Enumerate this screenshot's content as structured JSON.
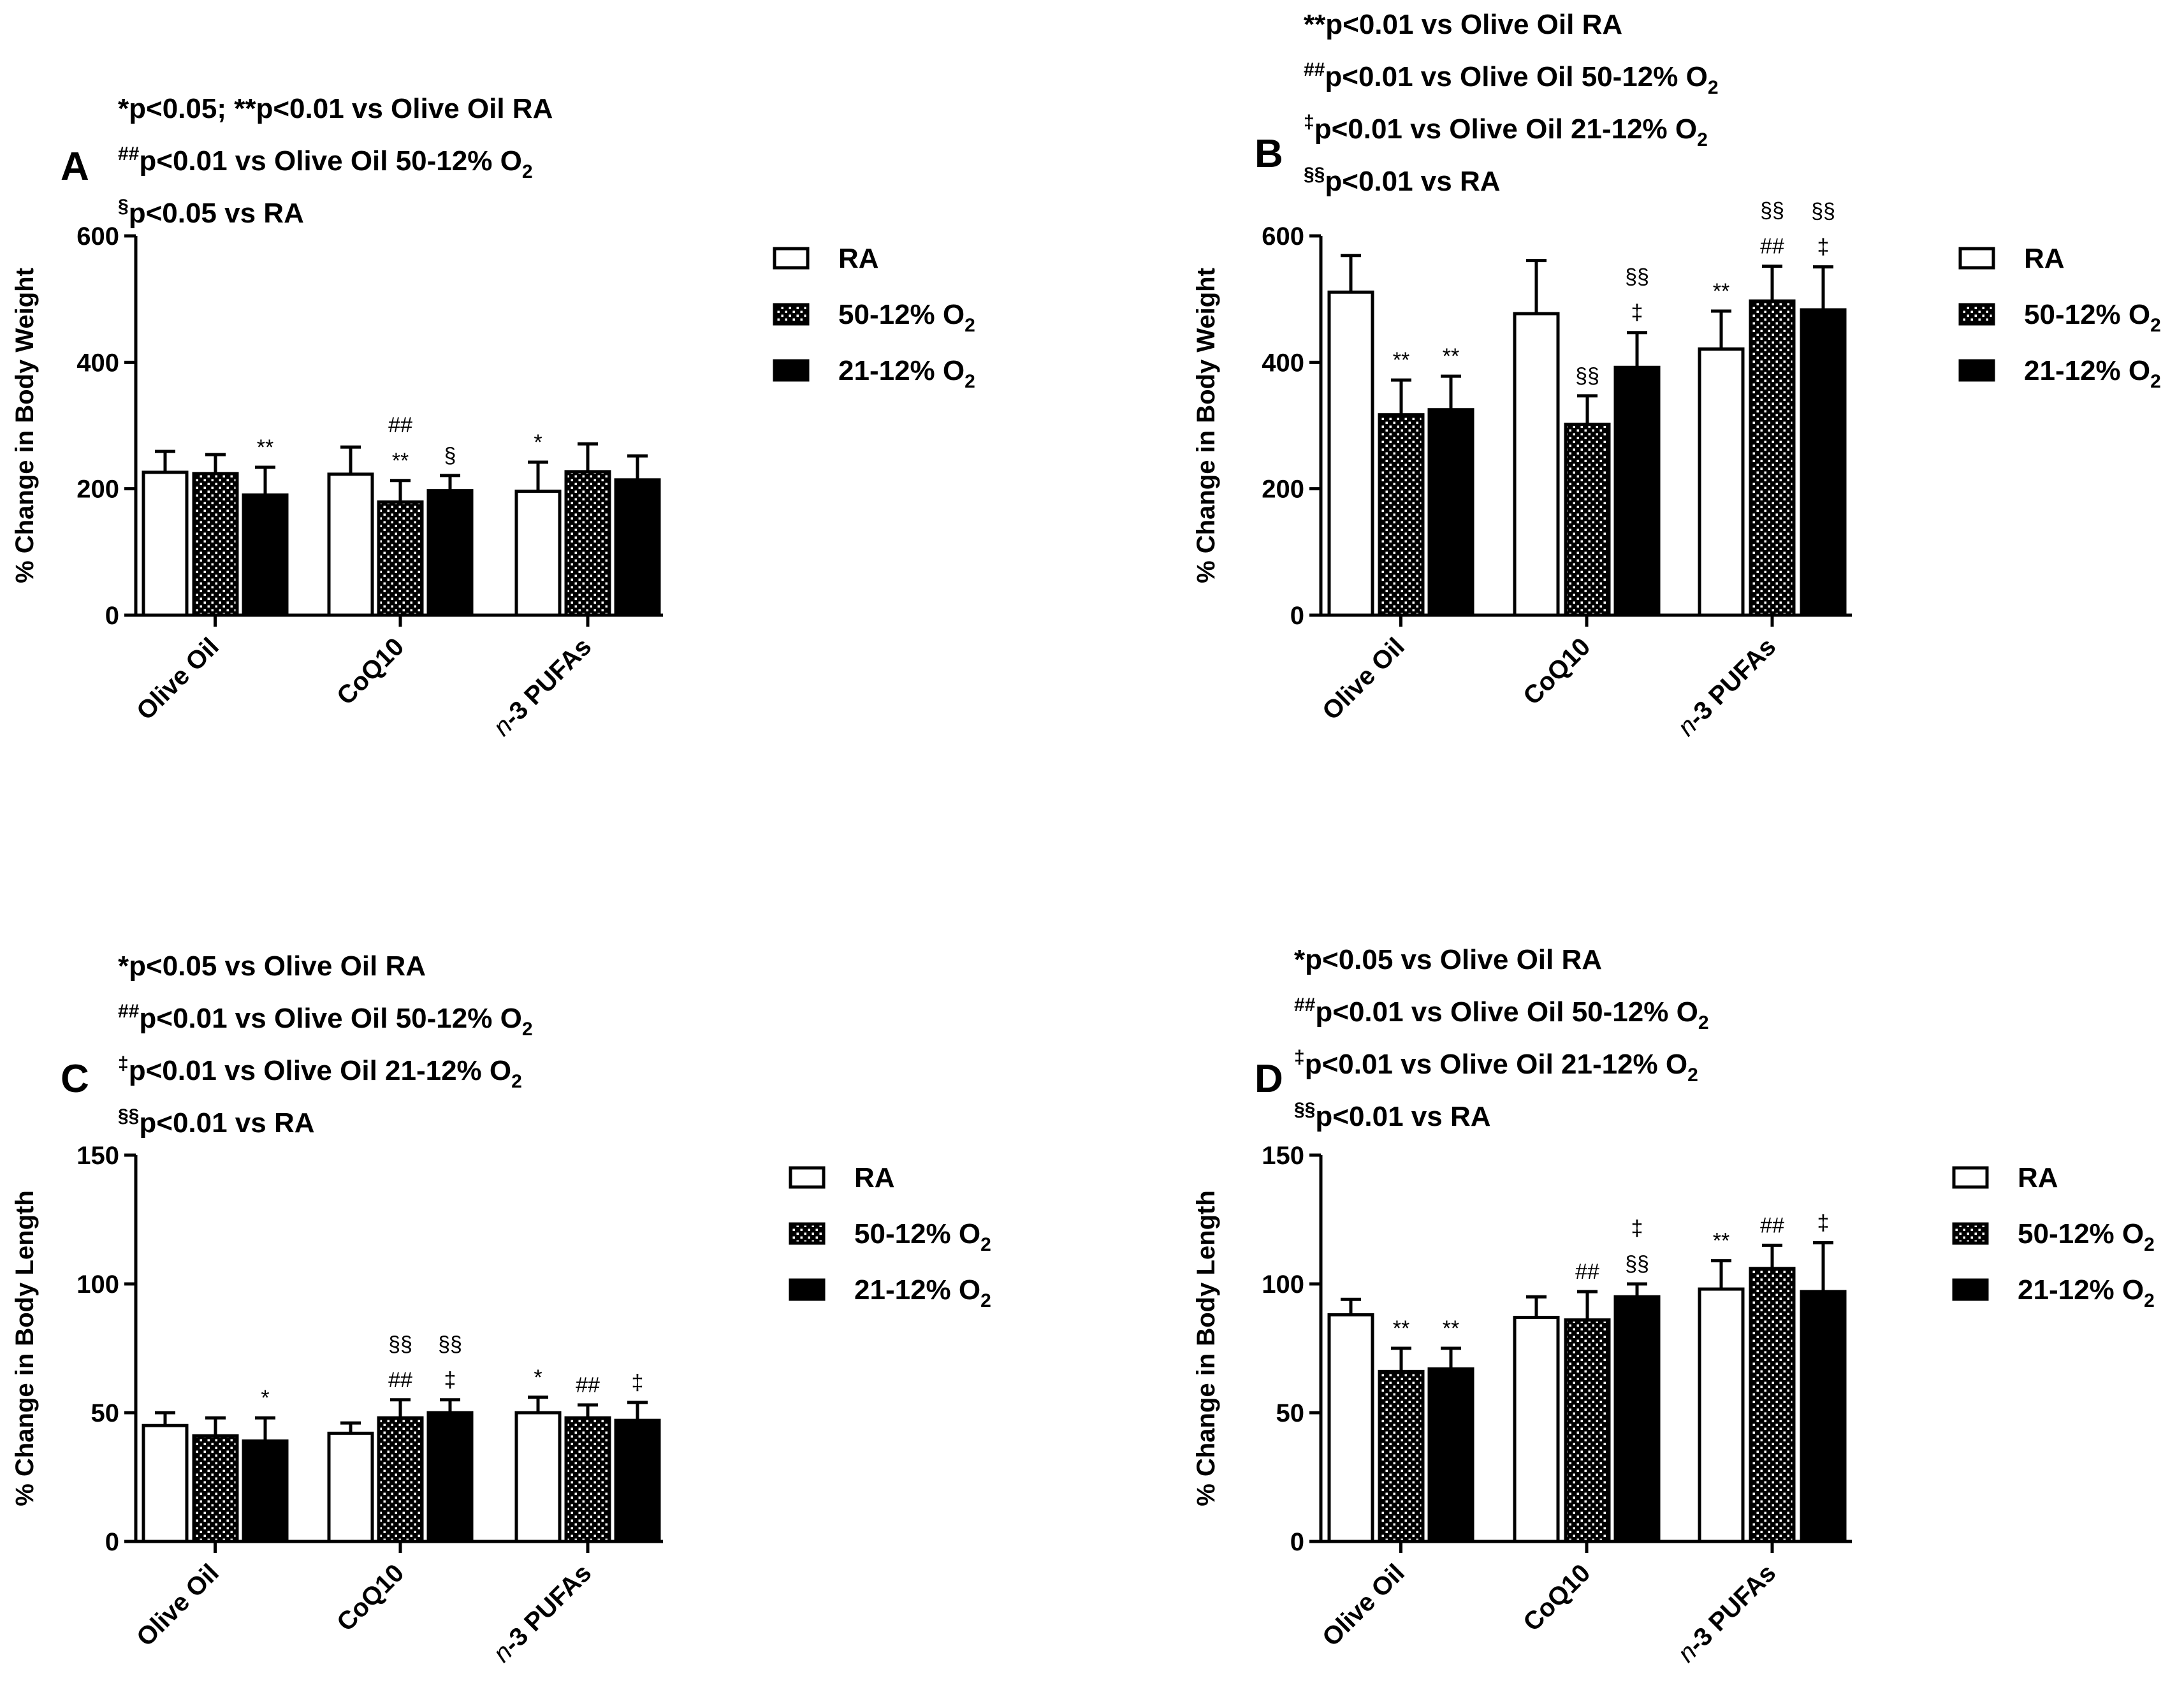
{
  "figure": {
    "series_legend": [
      {
        "key": "RA",
        "label": "RA",
        "sub": ""
      },
      {
        "key": "5012",
        "label": "50-12% O",
        "sub": "2"
      },
      {
        "key": "2112",
        "label": "21-12% O",
        "sub": "2"
      }
    ],
    "colors": {
      "ra_fill": "#ffffff",
      "o5012_pattern": "#000000",
      "o2112_fill": "#000000",
      "stroke": "#000000"
    }
  },
  "chart_data": [
    {
      "panel": "A",
      "type": "bar",
      "ylabel": "% Change in Body Weight",
      "ylim": [
        0,
        600
      ],
      "yticks": [
        0,
        200,
        400,
        600
      ],
      "categories": [
        "Olive Oil",
        "CoQ10",
        "n-3 PUFAs"
      ],
      "series": [
        {
          "name": "RA",
          "values": [
            226,
            223,
            196
          ],
          "errors": [
            33,
            43,
            46
          ],
          "sig": [
            "",
            "",
            "*"
          ]
        },
        {
          "name": "50-12% O2",
          "values": [
            224,
            179,
            227
          ],
          "errors": [
            30,
            34,
            44
          ],
          "sig": [
            "",
            "##\n**",
            ""
          ]
        },
        {
          "name": "21-12% O2",
          "values": [
            190,
            197,
            214
          ],
          "errors": [
            44,
            24,
            38
          ],
          "sig": [
            "**",
            "§",
            ""
          ]
        }
      ],
      "notes": [
        {
          "sup": "",
          "text": "*p<0.05; **p<0.01 vs Olive Oil RA",
          "sub": ""
        },
        {
          "sup": "##",
          "text": "p<0.01 vs Olive Oil 50-12% O",
          "sub": "2"
        },
        {
          "sup": "§",
          "text": "p<0.05 vs RA",
          "sub": ""
        }
      ]
    },
    {
      "panel": "B",
      "type": "bar",
      "ylabel": "% Change in Body Weight",
      "ylim": [
        0,
        600
      ],
      "yticks": [
        0,
        200,
        400,
        600
      ],
      "categories": [
        "Olive Oil",
        "CoQ10",
        "n-3 PUFAs"
      ],
      "series": [
        {
          "name": "RA",
          "values": [
            511,
            477,
            421
          ],
          "errors": [
            58,
            84,
            60
          ],
          "sig": [
            "",
            "",
            "**"
          ]
        },
        {
          "name": "50-12% O2",
          "values": [
            317,
            302,
            497
          ],
          "errors": [
            55,
            45,
            55
          ],
          "sig": [
            "**",
            "§§",
            "§§\n##"
          ]
        },
        {
          "name": "21-12% O2",
          "values": [
            325,
            392,
            483
          ],
          "errors": [
            53,
            55,
            68
          ],
          "sig": [
            "**",
            "§§\n‡",
            "§§\n‡"
          ]
        }
      ],
      "notes": [
        {
          "sup": "",
          "text": "**p<0.01 vs Olive Oil RA",
          "sub": ""
        },
        {
          "sup": "##",
          "text": "p<0.01 vs Olive Oil 50-12% O",
          "sub": "2"
        },
        {
          "sup": "‡",
          "text": "p<0.01 vs Olive Oil 21-12% O",
          "sub": "2"
        },
        {
          "sup": "§§",
          "text": "p<0.01 vs RA",
          "sub": ""
        }
      ]
    },
    {
      "panel": "C",
      "type": "bar",
      "ylabel": "% Change in Body Length",
      "ylim": [
        0,
        150
      ],
      "yticks": [
        0,
        50,
        100,
        150
      ],
      "categories": [
        "Olive Oil",
        "CoQ10",
        "n-3 PUFAs"
      ],
      "series": [
        {
          "name": "RA",
          "values": [
            45,
            42,
            50
          ],
          "errors": [
            5,
            4,
            6
          ],
          "sig": [
            "",
            "",
            "*"
          ]
        },
        {
          "name": "50-12% O2",
          "values": [
            41,
            48,
            48
          ],
          "errors": [
            7,
            7,
            5
          ],
          "sig": [
            "",
            "§§\n##",
            "##"
          ]
        },
        {
          "name": "21-12% O2",
          "values": [
            39,
            50,
            47
          ],
          "errors": [
            9,
            5,
            7
          ],
          "sig": [
            "*",
            "§§\n‡",
            "‡"
          ]
        }
      ],
      "notes": [
        {
          "sup": "",
          "text": "*p<0.05 vs Olive Oil RA",
          "sub": ""
        },
        {
          "sup": "##",
          "text": "p<0.01 vs Olive Oil 50-12% O",
          "sub": "2"
        },
        {
          "sup": "‡",
          "text": "p<0.01 vs Olive Oil 21-12% O",
          "sub": "2"
        },
        {
          "sup": "§§",
          "text": "p<0.01 vs RA",
          "sub": ""
        }
      ]
    },
    {
      "panel": "D",
      "type": "bar",
      "ylabel": "% Change in Body Length",
      "ylim": [
        0,
        150
      ],
      "yticks": [
        0,
        50,
        100,
        150
      ],
      "categories": [
        "Olive Oil",
        "CoQ10",
        "n-3 PUFAs"
      ],
      "series": [
        {
          "name": "RA",
          "values": [
            88,
            87,
            98
          ],
          "errors": [
            6,
            8,
            11
          ],
          "sig": [
            "",
            "",
            "**"
          ]
        },
        {
          "name": "50-12% O2",
          "values": [
            66,
            86,
            106
          ],
          "errors": [
            9,
            11,
            9
          ],
          "sig": [
            "**",
            "##",
            "##"
          ]
        },
        {
          "name": "21-12% O2",
          "values": [
            67,
            95,
            97
          ],
          "errors": [
            8,
            5,
            19
          ],
          "sig": [
            "**",
            "‡\n§§",
            "‡"
          ]
        }
      ],
      "notes": [
        {
          "sup": "",
          "text": "*p<0.05 vs Olive Oil RA",
          "sub": ""
        },
        {
          "sup": "##",
          "text": "p<0.01 vs Olive Oil 50-12% O",
          "sub": "2"
        },
        {
          "sup": "‡",
          "text": "p<0.01 vs Olive Oil 21-12% O",
          "sub": "2"
        },
        {
          "sup": "§§",
          "text": "p<0.01 vs RA",
          "sub": ""
        }
      ]
    }
  ]
}
